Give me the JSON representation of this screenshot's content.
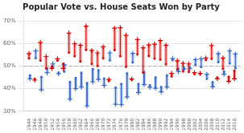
{
  "chart_data": {
    "type": "dumbbell",
    "title": "Popular Vote vs. House Seats Won by Party",
    "x": [
      1944,
      1946,
      1948,
      1950,
      1952,
      1954,
      1956,
      1958,
      1960,
      1962,
      1964,
      1966,
      1968,
      1970,
      1972,
      1974,
      1976,
      1978,
      1980,
      1982,
      1984,
      1986,
      1988,
      1990,
      1992,
      1994,
      1996,
      1998,
      2000,
      2002,
      2004,
      2006,
      2008,
      2010,
      2012,
      2014,
      2016
    ],
    "series": [
      {
        "color": "#dd0000",
        "marker": "square",
        "values": [
          53.4,
          44.3,
          52.4,
          49.0,
          49.9,
          52.4,
          51.1,
          56.0,
          54.4,
          52.1,
          57.2,
          50.9,
          50.0,
          53.4,
          43.4,
          57.1,
          54.4,
          49.7,
          44.0,
          55.2,
          47.1,
          54.5,
          53.3,
          52.9,
          50.8,
          45.4,
          48.5,
          47.6,
          47.4,
          46.5,
          46.5,
          52.7,
          53.2,
          44.9,
          48.8,
          45.3,
          48.0
        ]
      },
      {
        "color": "#dd0000",
        "marker": "plus",
        "values": [
          55.6,
          43.8,
          60.5,
          54.3,
          49.0,
          53.3,
          49.0,
          64.7,
          60.0,
          59.3,
          67.8,
          57.0,
          55.9,
          58.6,
          44.1,
          66.9,
          67.1,
          63.7,
          44.3,
          61.8,
          58.2,
          59.4,
          59.8,
          61.4,
          59.3,
          46.8,
          52.4,
          51.3,
          51.0,
          47.1,
          46.8,
          53.6,
          59.2,
          44.4,
          53.6,
          43.2,
          44.4
        ]
      },
      {
        "color": "#3366cc",
        "marker": "square",
        "values": [
          45.9,
          53.5,
          45.2,
          49.0,
          49.3,
          47.0,
          47.5,
          43.0,
          44.8,
          47.1,
          42.5,
          48.7,
          48.2,
          44.5,
          52.5,
          40.5,
          42.1,
          46.8,
          51.6,
          42.1,
          47.4,
          41.6,
          45.0,
          40.8,
          45.9,
          52.6,
          48.9,
          49.0,
          49.2,
          50.6,
          49.6,
          44.3,
          42.9,
          51.7,
          47.6,
          51.2,
          49.1
        ]
      },
      {
        "color": "#3366cc",
        "marker": "plus",
        "values": [
          44.4,
          56.8,
          39.5,
          47.1,
          51.0,
          46.7,
          50.6,
          35.3,
          40.0,
          40.7,
          32.3,
          43.0,
          44.1,
          41.4,
          55.9,
          33.1,
          32.9,
          36.3,
          55.7,
          38.2,
          41.8,
          40.6,
          40.2,
          38.6,
          40.7,
          53.4,
          47.6,
          48.7,
          49.0,
          52.9,
          53.3,
          46.4,
          40.8,
          55.6,
          46.4,
          56.8,
          55.4
        ]
      }
    ],
    "reference_line": 50,
    "xlim": [
      1942,
      2018
    ],
    "xticks": [
      1944,
      1946,
      1948,
      1950,
      1952,
      1954,
      1956,
      1958,
      1960,
      1962,
      1964,
      1966,
      1968,
      1970,
      1972,
      1974,
      1976,
      1978,
      1980,
      1982,
      1984,
      1986,
      1988,
      1990,
      1992,
      1994,
      1996,
      1998,
      2000,
      2002,
      2004,
      2006,
      2008,
      2010,
      2012,
      2014,
      2016
    ],
    "ylim": [
      30,
      73
    ],
    "yticks": [
      {
        "value": 30,
        "label": "30%"
      },
      {
        "value": 40,
        "label": "40%"
      },
      {
        "value": 50,
        "label": "50%"
      },
      {
        "value": 60,
        "label": "60%"
      },
      {
        "value": 70,
        "label": "70%"
      }
    ],
    "grid": true
  }
}
